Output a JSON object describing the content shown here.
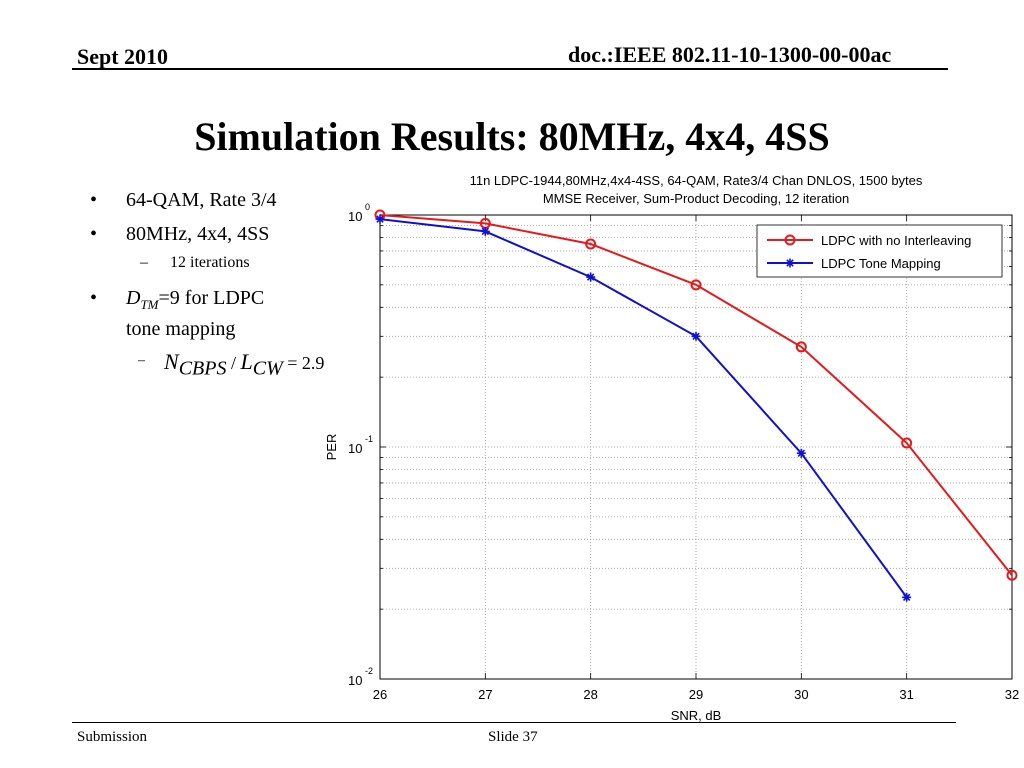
{
  "header": {
    "date": "Sept 2010",
    "doc": "doc.:IEEE 802.11-10-1300-00-00ac"
  },
  "title": "Simulation Results: 80MHz, 4x4, 4SS",
  "bullets": {
    "b1": "64-QAM, Rate 3/4",
    "b2": "80MHz, 4x4, 4SS",
    "b2_sub": "12 iterations",
    "b3_sym": "D",
    "b3_sub": "TM",
    "b3_rest": "=9 for LDPC",
    "b3_line2": "tone mapping",
    "eq_n": "N",
    "eq_n_sub": "CBPS",
    "eq_slash": " / ",
    "eq_l": "L",
    "eq_l_sub": "CW",
    "eq_rest": " = 2.9",
    "bullet_glyph": "•",
    "dash_glyph": "–"
  },
  "footer": {
    "left": "Submission",
    "center": "Slide 37"
  },
  "chart_data": {
    "type": "line",
    "title": "11n LDPC-1944,80MHz,4x4-4SS, 64-QAM, Rate3/4 Chan DNLOS, 1500 bytes",
    "subtitle": "MMSE Receiver, Sum-Product Decoding, 12 iteration",
    "xlabel": "SNR, dB",
    "ylabel": "PER",
    "xlim": [
      26,
      32
    ],
    "ylim": [
      0.01,
      1
    ],
    "yscale": "log",
    "grid": true,
    "legend_position": "top-right",
    "x_ticks": [
      "26",
      "27",
      "28",
      "29",
      "30",
      "31",
      "32"
    ],
    "y_ticks": [
      {
        "base": "10",
        "exp": "0",
        "value": 1
      },
      {
        "base": "10",
        "exp": "-1",
        "value": 0.1
      },
      {
        "base": "10",
        "exp": "-2",
        "value": 0.01
      }
    ],
    "series": [
      {
        "name": "LDPC with no Interleaving",
        "color": "#e41a1c",
        "marker": "circle",
        "x": [
          26,
          27,
          28,
          29,
          30,
          31,
          32
        ],
        "y": [
          1.0,
          0.92,
          0.75,
          0.5,
          0.27,
          0.104,
          0.028
        ]
      },
      {
        "name": "LDPC Tone Mapping",
        "color": "#1010d0",
        "marker": "star",
        "x": [
          26,
          27,
          28,
          29,
          30,
          31
        ],
        "y": [
          0.96,
          0.85,
          0.54,
          0.3,
          0.094,
          0.0225
        ]
      }
    ]
  }
}
